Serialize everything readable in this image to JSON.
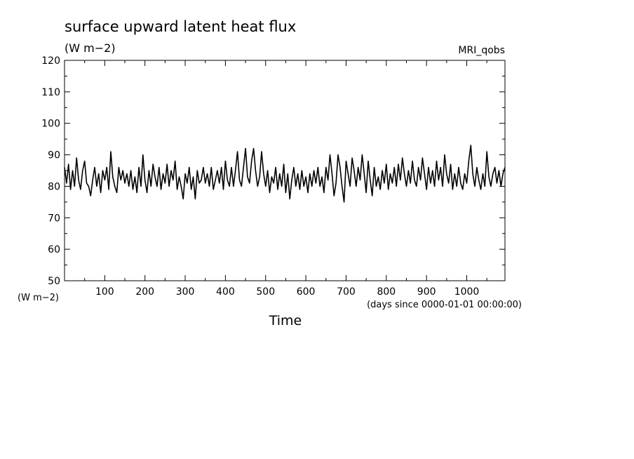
{
  "chart_data": {
    "type": "line",
    "title": "surface upward latent heat flux",
    "units_label": "(W m−2)",
    "y_units_label": "(W m−2)",
    "model_label": "MRI_qobs",
    "xlabel": "Time",
    "x_units": "(days since 0000-01-01 00:00:00)",
    "xlim": [
      0,
      1095
    ],
    "ylim": [
      50,
      120
    ],
    "x_ticks": [
      100,
      200,
      300,
      400,
      500,
      600,
      700,
      800,
      900,
      1000
    ],
    "y_ticks": [
      50,
      60,
      70,
      80,
      90,
      100,
      110,
      120
    ],
    "grid": false,
    "line_color": "#000000",
    "series": [
      {
        "x": [
          0,
          5,
          10,
          15,
          20,
          25,
          30,
          35,
          40,
          45,
          50,
          55,
          60,
          65,
          70,
          75,
          80,
          85,
          90,
          95,
          100,
          105,
          110,
          115,
          120,
          125,
          130,
          135,
          140,
          145,
          150,
          155,
          160,
          165,
          170,
          175,
          180,
          185,
          190,
          195,
          200,
          205,
          210,
          215,
          220,
          225,
          230,
          235,
          240,
          245,
          250,
          255,
          260,
          265,
          270,
          275,
          280,
          285,
          290,
          295,
          300,
          305,
          310,
          315,
          320,
          325,
          330,
          335,
          340,
          345,
          350,
          355,
          360,
          365,
          370,
          375,
          380,
          385,
          390,
          395,
          400,
          405,
          410,
          415,
          420,
          425,
          430,
          435,
          440,
          445,
          450,
          455,
          460,
          465,
          470,
          475,
          480,
          485,
          490,
          495,
          500,
          505,
          510,
          515,
          520,
          525,
          530,
          535,
          540,
          545,
          550,
          555,
          560,
          565,
          570,
          575,
          580,
          585,
          590,
          595,
          600,
          605,
          610,
          615,
          620,
          625,
          630,
          635,
          640,
          645,
          650,
          655,
          660,
          665,
          670,
          675,
          680,
          685,
          690,
          695,
          700,
          705,
          710,
          715,
          720,
          725,
          730,
          735,
          740,
          745,
          750,
          755,
          760,
          765,
          770,
          775,
          780,
          785,
          790,
          795,
          800,
          805,
          810,
          815,
          820,
          825,
          830,
          835,
          840,
          845,
          850,
          855,
          860,
          865,
          870,
          875,
          880,
          885,
          890,
          895,
          900,
          905,
          910,
          915,
          920,
          925,
          930,
          935,
          940,
          945,
          950,
          955,
          960,
          965,
          970,
          975,
          980,
          985,
          990,
          995,
          1000,
          1005,
          1010,
          1015,
          1020,
          1025,
          1030,
          1035,
          1040,
          1045,
          1050,
          1055,
          1060,
          1065,
          1070,
          1075,
          1080,
          1085,
          1090,
          1095
        ],
        "y": [
          86,
          81,
          87,
          79,
          85,
          80,
          89,
          82,
          79,
          85,
          88,
          81,
          80,
          77,
          82,
          86,
          80,
          84,
          78,
          85,
          82,
          86,
          79,
          91,
          83,
          80,
          78,
          86,
          82,
          85,
          81,
          84,
          80,
          85,
          79,
          83,
          78,
          86,
          80,
          90,
          82,
          78,
          85,
          80,
          87,
          83,
          80,
          86,
          79,
          84,
          81,
          87,
          80,
          85,
          82,
          88,
          79,
          83,
          80,
          76,
          84,
          81,
          86,
          79,
          83,
          76,
          85,
          81,
          82,
          86,
          81,
          84,
          80,
          86,
          79,
          82,
          85,
          81,
          86,
          79,
          88,
          82,
          80,
          86,
          80,
          85,
          91,
          82,
          80,
          86,
          92,
          83,
          81,
          88,
          92,
          85,
          80,
          83,
          91,
          84,
          80,
          85,
          78,
          83,
          81,
          86,
          79,
          84,
          80,
          87,
          78,
          84,
          76,
          82,
          86,
          80,
          84,
          79,
          85,
          80,
          83,
          78,
          84,
          80,
          85,
          81,
          86,
          80,
          83,
          78,
          86,
          82,
          90,
          84,
          77,
          81,
          90,
          86,
          80,
          75,
          88,
          84,
          80,
          89,
          85,
          80,
          86,
          82,
          90,
          84,
          78,
          88,
          82,
          77,
          86,
          80,
          83,
          79,
          85,
          81,
          87,
          79,
          84,
          81,
          86,
          80,
          87,
          82,
          89,
          84,
          80,
          85,
          81,
          88,
          82,
          80,
          86,
          82,
          89,
          84,
          79,
          86,
          81,
          85,
          80,
          88,
          82,
          86,
          80,
          90,
          84,
          81,
          87,
          79,
          84,
          80,
          86,
          81,
          79,
          84,
          81,
          88,
          93,
          84,
          80,
          86,
          82,
          79,
          84,
          80,
          91,
          83,
          80,
          84,
          86,
          81,
          85,
          80,
          84,
          86
        ]
      }
    ]
  }
}
